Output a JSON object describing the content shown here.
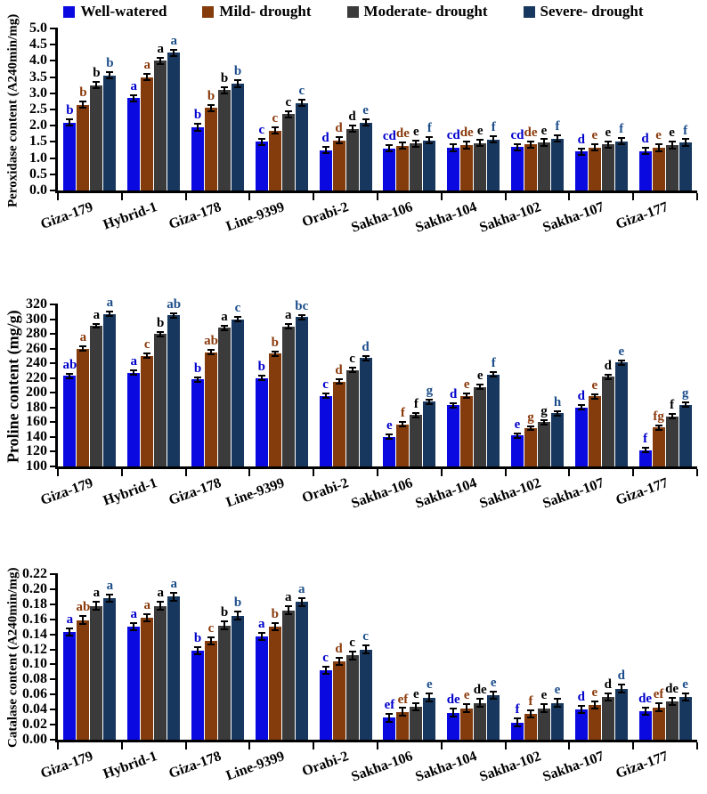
{
  "legend": {
    "items": [
      {
        "label": "Well-watered",
        "color": "#0a0ae0"
      },
      {
        "label": "Mild- drought",
        "color": "#843c0c"
      },
      {
        "label": "Moderate- drought",
        "color": "#3b3b3b"
      },
      {
        "label": "Severe- drought",
        "color": "#17375e"
      }
    ]
  },
  "chart_data": [
    {
      "type": "bar",
      "title": "",
      "xlabel": "",
      "ylabel": "Peroxidase content (A240min/mg)",
      "ylim": [
        0,
        5
      ],
      "ytick_labels": [
        "0.0",
        "0.5",
        "1.0",
        "1.5",
        "2.0",
        "2.5",
        "3.0",
        "3.5",
        "4.0",
        "4.5",
        "5.0"
      ],
      "grid": false,
      "legend_position": "top",
      "err": 0.1,
      "categories": [
        "Giza-179",
        "Hybrid-1",
        "Giza-178",
        "Line-9399",
        "Orabi-2",
        "Sakha-106",
        "Sakha-104",
        "Sakha-102",
        "Sakha-107",
        "Giza-177"
      ],
      "series": [
        {
          "name": "Well-watered",
          "color": "#0a0ae0",
          "letter_color": "#0000cc",
          "values": [
            2.1,
            2.85,
            1.95,
            1.5,
            1.25,
            1.3,
            1.32,
            1.34,
            1.2,
            1.22
          ],
          "letters": [
            "b",
            "a",
            "b",
            "c",
            "d",
            "cd",
            "cd",
            "cd",
            "d",
            "d"
          ]
        },
        {
          "name": "Mild- drought",
          "color": "#843c0c",
          "letter_color": "#8b3a0b",
          "values": [
            2.65,
            3.5,
            2.55,
            1.85,
            1.55,
            1.38,
            1.4,
            1.42,
            1.33,
            1.32
          ],
          "letters": [
            "b",
            "a",
            "b",
            "c",
            "d",
            "de",
            "de",
            "de",
            "e",
            "e"
          ]
        },
        {
          "name": "Moderate- drought",
          "color": "#3b3b3b",
          "letter_color": "#000000",
          "values": [
            3.25,
            4.0,
            3.1,
            2.35,
            1.9,
            1.45,
            1.46,
            1.48,
            1.42,
            1.4
          ],
          "letters": [
            "b",
            "a",
            "b",
            "c",
            "d",
            "e",
            "e",
            "e",
            "e",
            "e"
          ]
        },
        {
          "name": "Severe- drought",
          "color": "#17375e",
          "letter_color": "#1d4e8c",
          "values": [
            3.55,
            4.25,
            3.3,
            2.7,
            2.1,
            1.55,
            1.57,
            1.6,
            1.52,
            1.48
          ],
          "letters": [
            "b",
            "a",
            "b",
            "c",
            "e",
            "f",
            "f",
            "f",
            "f",
            "f"
          ]
        }
      ]
    },
    {
      "type": "bar",
      "title": "",
      "xlabel": "",
      "ylabel": "Proline content (mg/g)",
      "ylim": [
        100,
        320
      ],
      "ytick_labels": [
        "100",
        "120",
        "140",
        "160",
        "180",
        "200",
        "220",
        "240",
        "260",
        "280",
        "300",
        "320"
      ],
      "grid": false,
      "legend_position": "top",
      "err": 3,
      "categories": [
        "Giza-179",
        "Hybrid-1",
        "Giza-178",
        "Line-9399",
        "Orabi-2",
        "Sakha-106",
        "Sakha-104",
        "Sakha-102",
        "Sakha-107",
        "Giza-177"
      ],
      "series": [
        {
          "name": "Well-watered",
          "color": "#0a0ae0",
          "letter_color": "#0000cc",
          "values": [
            223,
            227,
            218,
            220,
            196,
            140,
            183,
            142,
            180,
            122
          ],
          "letters": [
            "ab",
            "a",
            "b",
            "b",
            "c",
            "e",
            "d",
            "e",
            "d",
            "f"
          ]
        },
        {
          "name": "Mild- drought",
          "color": "#843c0c",
          "letter_color": "#8b3a0b",
          "values": [
            260,
            250,
            255,
            253,
            215,
            157,
            196,
            152,
            195,
            153
          ],
          "letters": [
            "a",
            "c",
            "ab",
            "b",
            "d",
            "f",
            "e",
            "g",
            "e",
            "fg"
          ]
        },
        {
          "name": "Moderate- drought",
          "color": "#3b3b3b",
          "letter_color": "#000000",
          "values": [
            291,
            280,
            288,
            290,
            231,
            170,
            208,
            160,
            222,
            168
          ],
          "letters": [
            "a",
            "b",
            "a",
            "a",
            "c",
            "f",
            "e",
            "g",
            "d",
            "f"
          ]
        },
        {
          "name": "Severe- drought",
          "color": "#17375e",
          "letter_color": "#1d4e8c",
          "values": [
            307,
            305,
            300,
            303,
            247,
            188,
            225,
            172,
            241,
            184
          ],
          "letters": [
            "a",
            "ab",
            "c",
            "bc",
            "d",
            "g",
            "f",
            "h",
            "e",
            "g"
          ]
        }
      ]
    },
    {
      "type": "bar",
      "title": "",
      "xlabel": "",
      "ylabel": "Catalase content (A240min/mg)",
      "ylim": [
        0,
        0.22
      ],
      "ytick_labels": [
        "0.00",
        "0.02",
        "0.04",
        "0.06",
        "0.08",
        "0.10",
        "0.12",
        "0.14",
        "0.16",
        "0.18",
        "0.20",
        "0.22"
      ],
      "grid": false,
      "legend_position": "top",
      "err": 0.005,
      "categories": [
        "Giza-179",
        "Hybrid-1",
        "Giza-178",
        "Line-9399",
        "Orabi-2",
        "Sakha-106",
        "Sakha-104",
        "Sakha-102",
        "Sakha-107",
        "Giza-177"
      ],
      "series": [
        {
          "name": "Well-watered",
          "color": "#0a0ae0",
          "letter_color": "#0000cc",
          "values": [
            0.143,
            0.15,
            0.118,
            0.137,
            0.092,
            0.029,
            0.036,
            0.023,
            0.04,
            0.038
          ],
          "letters": [
            "a",
            "a",
            "b",
            "a",
            "c",
            "ef",
            "de",
            "f",
            "d",
            "de"
          ]
        },
        {
          "name": "Mild- drought",
          "color": "#843c0c",
          "letter_color": "#8b3a0b",
          "values": [
            0.159,
            0.162,
            0.131,
            0.15,
            0.104,
            0.037,
            0.042,
            0.034,
            0.046,
            0.043
          ],
          "letters": [
            "ab",
            "a",
            "c",
            "b",
            "d",
            "ef",
            "e",
            "f",
            "e",
            "ef"
          ]
        },
        {
          "name": "Moderate- drought",
          "color": "#3b3b3b",
          "letter_color": "#000000",
          "values": [
            0.178,
            0.178,
            0.152,
            0.172,
            0.112,
            0.044,
            0.049,
            0.042,
            0.057,
            0.051
          ],
          "letters": [
            "a",
            "a",
            "b",
            "a",
            "c",
            "e",
            "de",
            "e",
            "d",
            "de"
          ]
        },
        {
          "name": "Severe- drought",
          "color": "#17375e",
          "letter_color": "#1d4e8c",
          "values": [
            0.188,
            0.19,
            0.165,
            0.183,
            0.12,
            0.056,
            0.059,
            0.049,
            0.068,
            0.057
          ],
          "letters": [
            "a",
            "a",
            "b",
            "a",
            "c",
            "e",
            "e",
            "e",
            "d",
            "e"
          ]
        }
      ]
    }
  ]
}
